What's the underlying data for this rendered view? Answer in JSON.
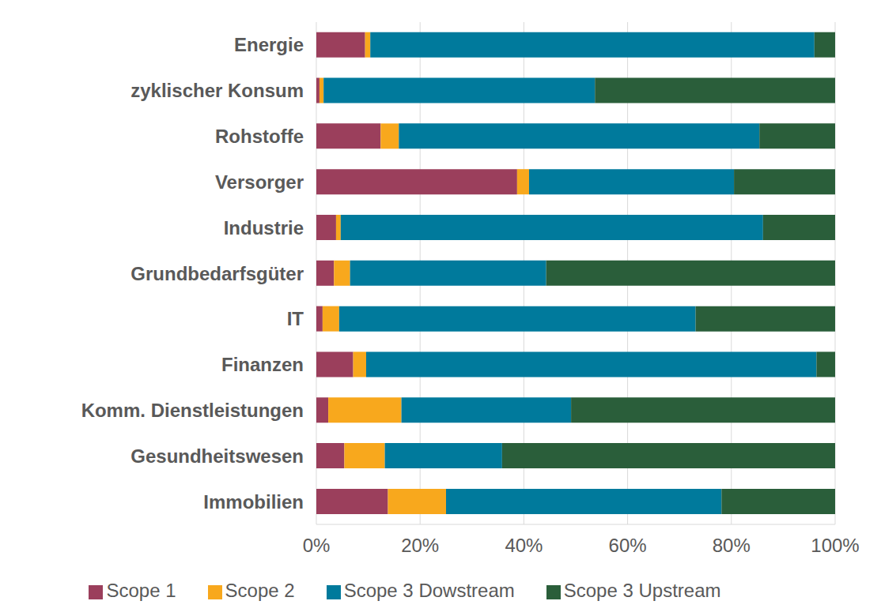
{
  "chart_data": {
    "type": "bar",
    "orientation": "horizontal",
    "stacked": true,
    "grid": true,
    "legend": "bottom",
    "categories": [
      "Energie",
      "zyklischer Konsum",
      "Rohstoffe",
      "Versorger",
      "Industrie",
      "Grundbedarfsgüter",
      "IT",
      "Finanzen",
      "Komm. Dienstleistungen",
      "Gesundheitswesen",
      "Immobilien"
    ],
    "series": [
      {
        "name": "Scope 1",
        "color": "#9b3f5c",
        "values": [
          9.4,
          0.6,
          12.4,
          38.7,
          3.8,
          3.4,
          1.2,
          7.1,
          2.3,
          5.4,
          13.8
        ]
      },
      {
        "name": "Scope 2",
        "color": "#f8a81d",
        "values": [
          1.0,
          0.8,
          3.5,
          2.3,
          0.9,
          3.1,
          3.2,
          2.5,
          14.1,
          7.8,
          11.2
        ]
      },
      {
        "name": "Scope 3 Dowstream",
        "color": "#007a9c",
        "values": [
          85.6,
          52.3,
          69.5,
          39.5,
          81.4,
          37.8,
          68.7,
          86.8,
          32.7,
          22.6,
          53.1
        ]
      },
      {
        "name": "Scope 3 Upstream",
        "color": "#2a5e3a",
        "values": [
          4.0,
          46.3,
          14.6,
          19.5,
          13.9,
          55.7,
          26.9,
          3.6,
          50.9,
          64.2,
          21.9
        ]
      }
    ],
    "xlim": [
      0,
      100
    ],
    "xticks": [
      {
        "value": 0,
        "label": "0%"
      },
      {
        "value": 20,
        "label": "20%"
      },
      {
        "value": 40,
        "label": "40%"
      },
      {
        "value": 60,
        "label": "60%"
      },
      {
        "value": 80,
        "label": "80%"
      },
      {
        "value": 100,
        "label": "100%"
      }
    ]
  }
}
